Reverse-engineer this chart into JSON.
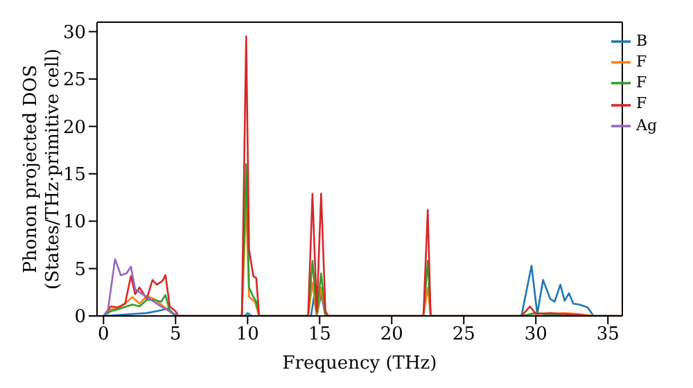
{
  "chart_data": {
    "type": "line",
    "xlabel": "Frequency (THz)",
    "ylabel": "Phonon projected DOS\n(States/THz·primitive cell)",
    "xlim": [
      -0.45,
      36
    ],
    "ylim": [
      0,
      31
    ],
    "xticks": [
      0,
      5,
      10,
      15,
      20,
      25,
      30,
      35
    ],
    "yticks": [
      0,
      5,
      10,
      15,
      20,
      25,
      30
    ],
    "grid": false,
    "legend": "top right",
    "series": [
      {
        "name": "B",
        "color": "#1f77b4",
        "x": [
          0,
          2,
          3,
          4,
          4.5,
          5,
          9.8,
          10,
          10.3,
          14.4,
          14.6,
          14.8,
          15.1,
          15.4,
          29,
          29.7,
          30.1,
          30.5,
          31,
          31.3,
          31.7,
          32,
          32.3,
          32.6,
          33,
          33.6,
          34,
          36
        ],
        "values": [
          0,
          0.2,
          0.3,
          0.6,
          0.8,
          0,
          0,
          0.3,
          0,
          0,
          2,
          0,
          2.3,
          0,
          0,
          5.3,
          0.2,
          3.8,
          1.8,
          1.5,
          3.3,
          1.6,
          2.4,
          1.3,
          1.2,
          0.9,
          0,
          0
        ]
      },
      {
        "name": "F",
        "color": "#ff7f0e",
        "x": [
          0,
          0.5,
          1,
          1.5,
          2,
          2.5,
          3,
          3.5,
          4,
          4.5,
          5,
          9.6,
          9.9,
          10.1,
          10.5,
          10.8,
          14.2,
          14.5,
          14.8,
          15.1,
          15.4,
          22.2,
          22.5,
          22.7,
          29,
          30,
          31,
          32,
          33,
          34,
          36
        ],
        "values": [
          0,
          0.7,
          0.8,
          1.3,
          2,
          1.3,
          2.1,
          1.8,
          1.2,
          0.6,
          0,
          0,
          12,
          2,
          1.5,
          0,
          0,
          3.5,
          0,
          3,
          0,
          0,
          3,
          0,
          0,
          0.3,
          0.2,
          0.3,
          0.2,
          0,
          0
        ]
      },
      {
        "name": "F",
        "color": "#2ca02c",
        "x": [
          0,
          0.5,
          1,
          2,
          2.5,
          3,
          3.5,
          4,
          4.3,
          4.6,
          5,
          9.6,
          9.9,
          10.1,
          10.4,
          10.6,
          10.8,
          14.2,
          14.5,
          14.8,
          15.1,
          15.4,
          22.2,
          22.5,
          22.7,
          29,
          30,
          31,
          32,
          34,
          36
        ],
        "values": [
          0,
          0.5,
          0.7,
          1.2,
          1,
          1.7,
          1.7,
          1.5,
          2.2,
          0.5,
          0,
          0,
          16,
          3,
          2,
          1.5,
          0,
          0,
          5.8,
          0.3,
          4.5,
          0,
          0,
          5.8,
          0,
          0,
          0.3,
          0.1,
          0.2,
          0,
          0
        ]
      },
      {
        "name": "F",
        "color": "#d62728",
        "x": [
          0,
          0.5,
          1,
          1.5,
          1.9,
          2.2,
          2.5,
          3,
          3.4,
          3.7,
          4.1,
          4.3,
          4.6,
          5,
          5.2,
          9.6,
          9.9,
          10.1,
          10.4,
          10.6,
          10.8,
          14.2,
          14.5,
          14.8,
          15.1,
          15.4,
          15.6,
          22.2,
          22.5,
          22.7,
          29,
          29.6,
          30,
          31,
          32,
          33,
          34,
          36
        ],
        "values": [
          0,
          1,
          0.9,
          1.3,
          4.2,
          2.3,
          3,
          1.8,
          3.8,
          3.3,
          3.7,
          4.3,
          1,
          0.5,
          0,
          0,
          29.5,
          7,
          4.2,
          4,
          0,
          0,
          12.9,
          0.5,
          12.9,
          0.5,
          0,
          0,
          11.2,
          0,
          0,
          1,
          0.2,
          0.3,
          0.2,
          0.1,
          0,
          0
        ]
      },
      {
        "name": "Ag",
        "color": "#9467bd",
        "x": [
          0,
          0.3,
          0.8,
          1.2,
          1.6,
          1.9,
          2.2,
          3,
          4,
          4.8,
          5.3
        ],
        "values": [
          0,
          0.5,
          6,
          4.3,
          4.5,
          5.2,
          2.8,
          2,
          1,
          0.3,
          0
        ]
      }
    ]
  }
}
